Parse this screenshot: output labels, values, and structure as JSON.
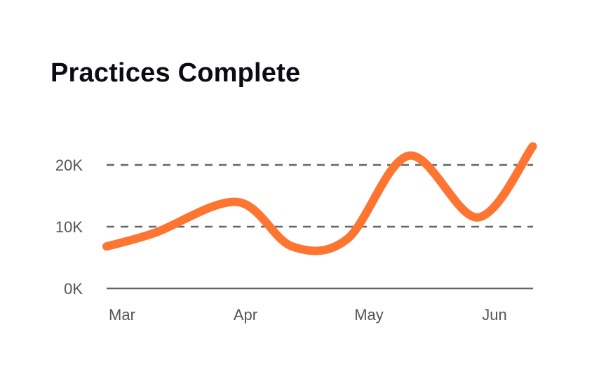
{
  "title": "Practices Complete",
  "colors": {
    "line": "#fe7431",
    "grid": "#666666",
    "axis": "#666666",
    "tick_text": "#555555",
    "title": "#0b0b12"
  },
  "chart_data": {
    "type": "line",
    "title": "Practices Complete",
    "xlabel": "",
    "ylabel": "",
    "x_tick_labels": [
      "Mar",
      "Apr",
      "May",
      "Jun"
    ],
    "y_tick_labels": [
      "0K",
      "10K",
      "20K"
    ],
    "y_ticks": [
      0,
      10000,
      20000
    ],
    "ylim": [
      0,
      23000
    ],
    "grid": "horizontal dashed",
    "legend": "none",
    "series": [
      {
        "x": [
          0,
          0.35,
          0.95,
          1.35,
          1.75,
          2.2,
          2.7,
          3.1
        ],
        "values": [
          6800,
          9000,
          14000,
          6800,
          8000,
          21500,
          11500,
          23000
        ]
      }
    ]
  }
}
